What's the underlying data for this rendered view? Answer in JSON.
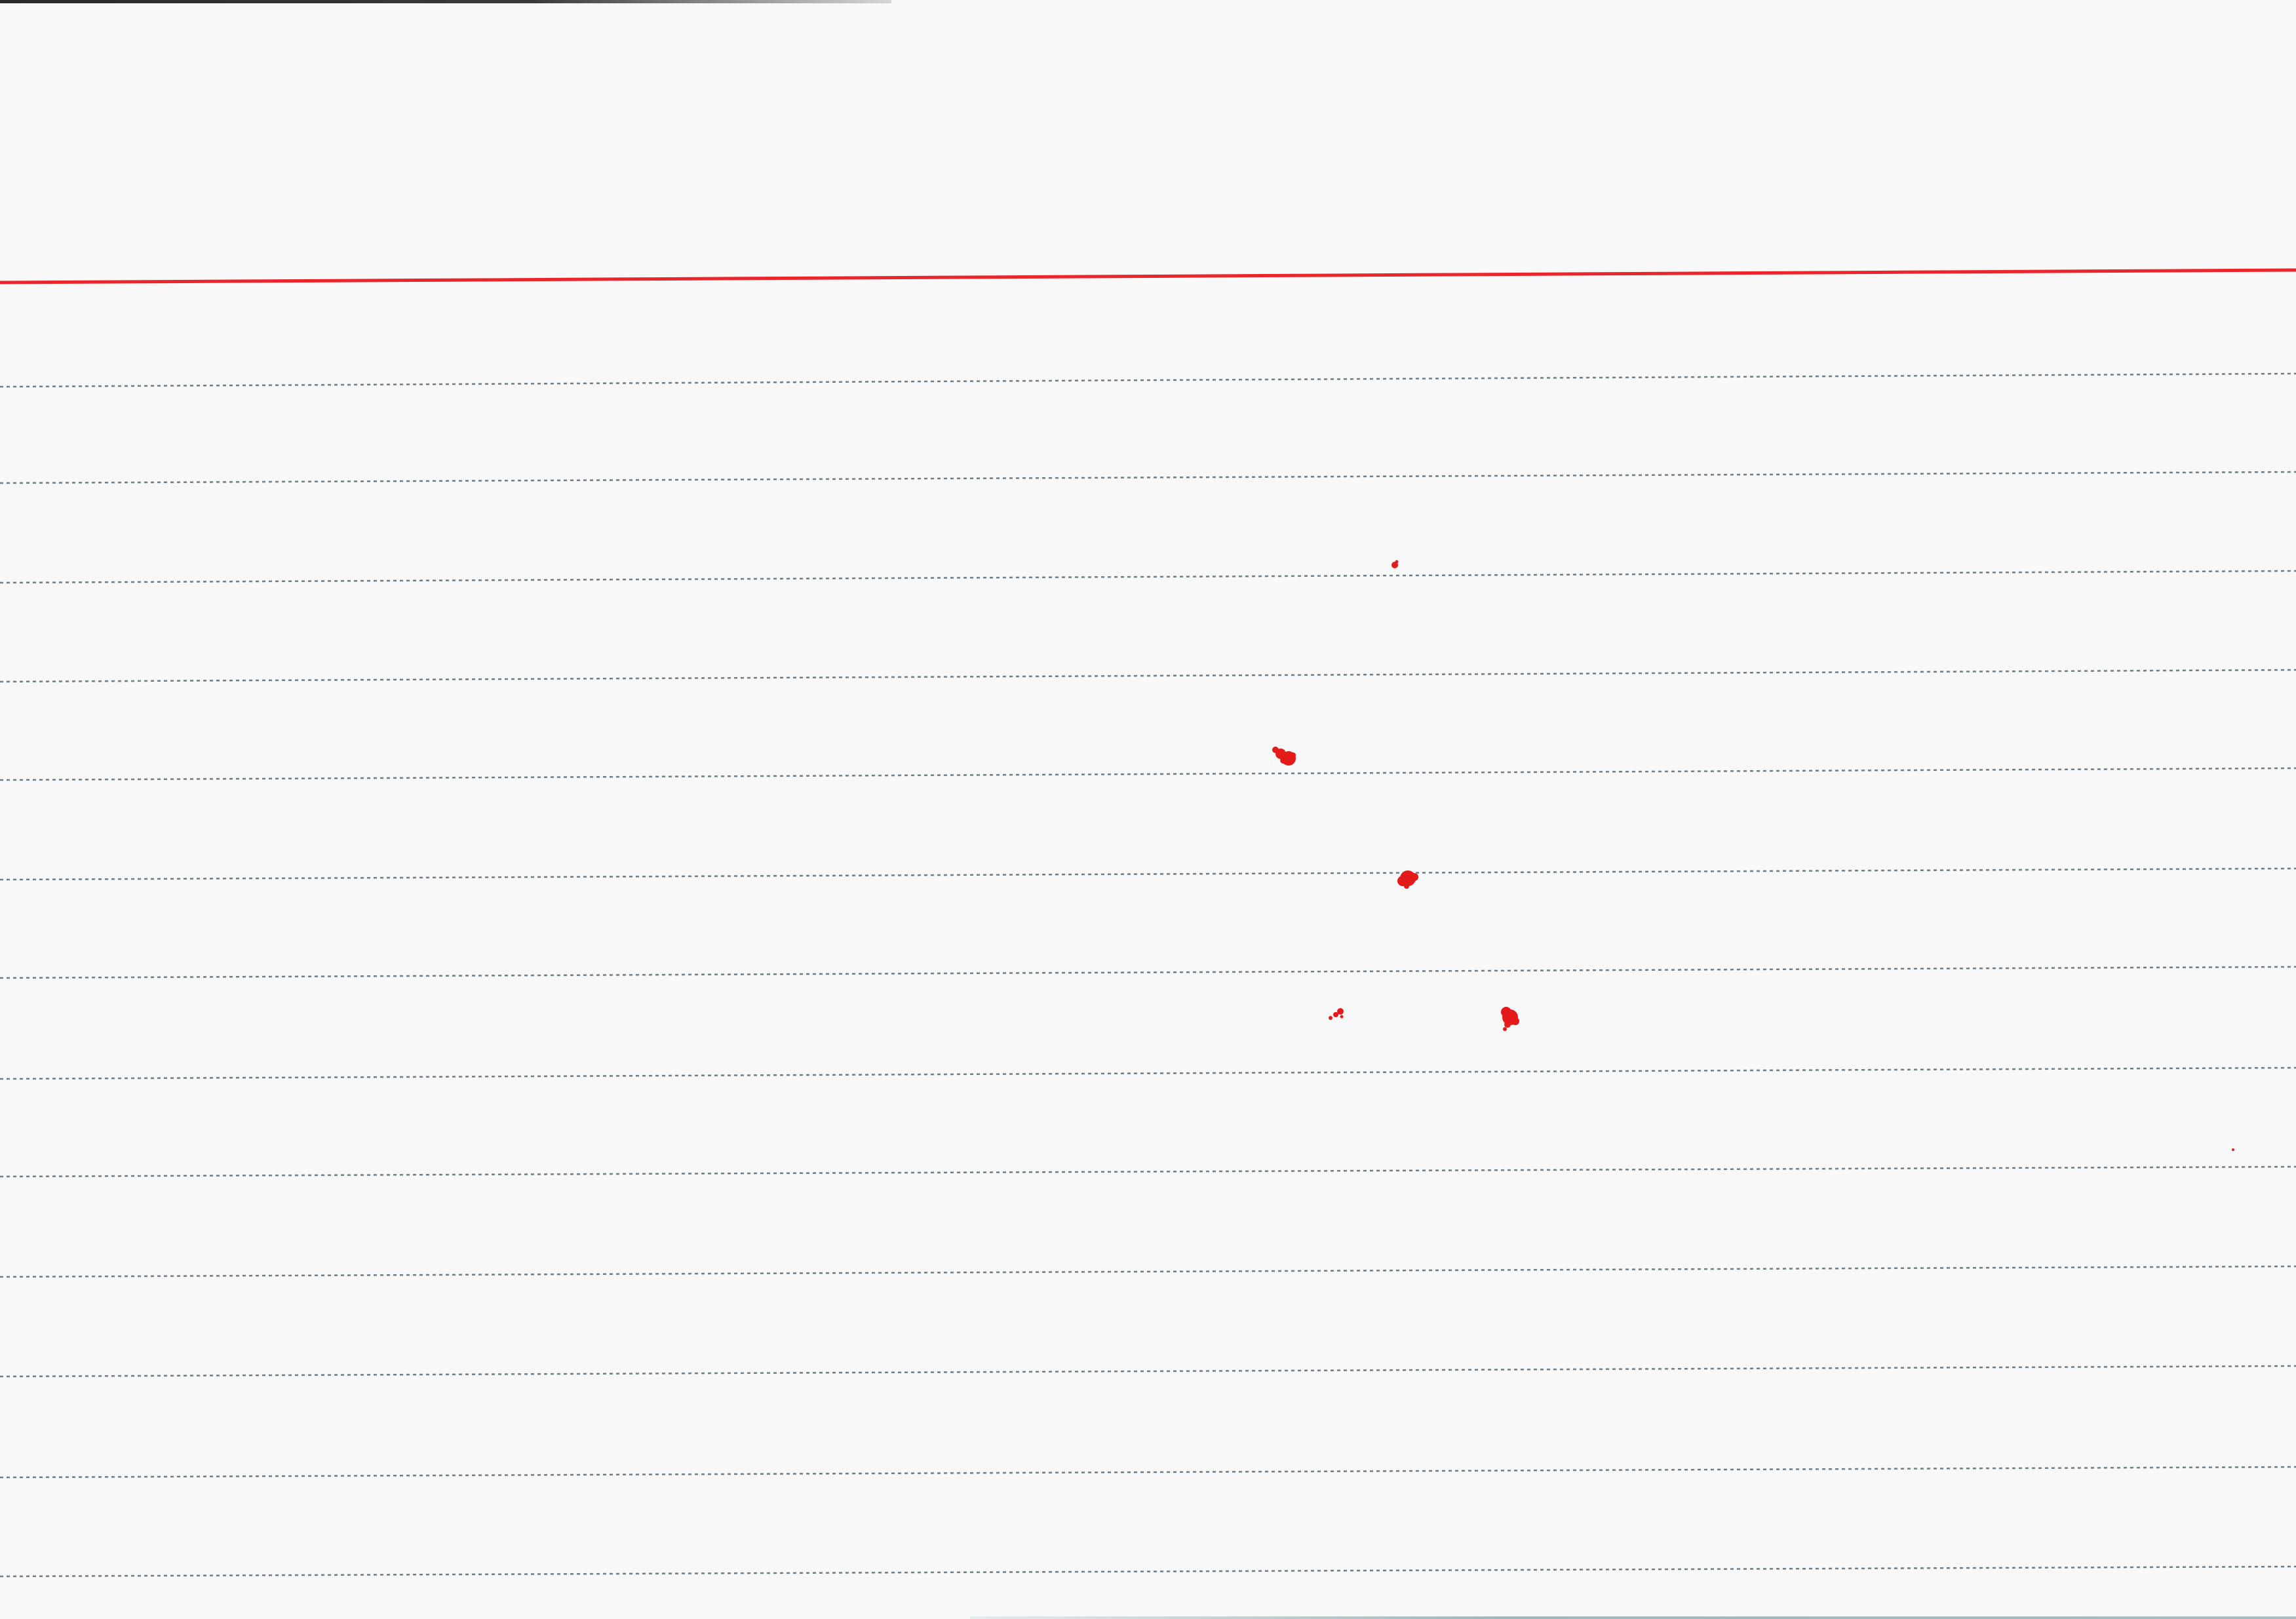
{
  "page": {
    "type": "blank ruled index card",
    "colors": {
      "paper": "#f8f8f8",
      "header_rule": "#e8262c",
      "ruled_line": "#6f7d86",
      "ink_spot": "#e31b1b"
    }
  },
  "card": {
    "header_rule_count": 1,
    "ruled_line_count": 13,
    "ink_spot_count": 6
  }
}
